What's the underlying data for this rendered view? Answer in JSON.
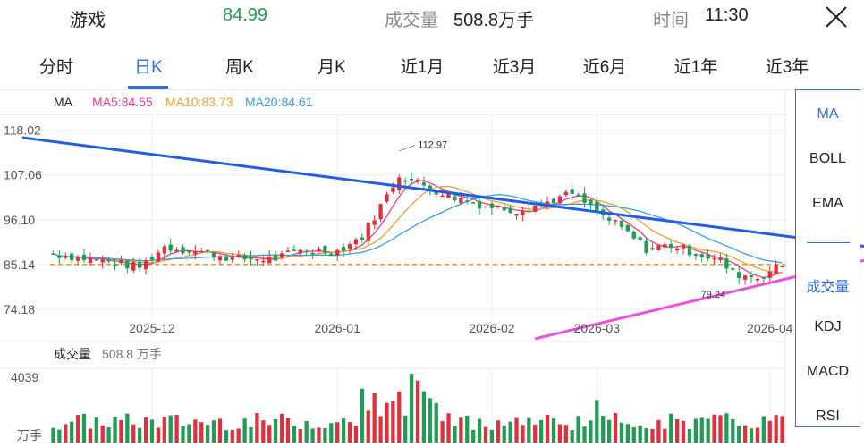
{
  "header": {
    "stock_name": "游戏",
    "price": "84.99",
    "volume_label": "成交量",
    "volume_value": "508.8万手",
    "time_label": "时间",
    "time_value": "11:30"
  },
  "tabs": [
    {
      "label": "分时"
    },
    {
      "label": "日K",
      "active": true
    },
    {
      "label": "周K"
    },
    {
      "label": "月K"
    },
    {
      "label": "近1月"
    },
    {
      "label": "近3月"
    },
    {
      "label": "近6月"
    },
    {
      "label": "近1年"
    },
    {
      "label": "近3年"
    }
  ],
  "indicators_panel": {
    "main": [
      "MA",
      "BOLL",
      "EMA"
    ],
    "sub": [
      "成交量",
      "KDJ",
      "MACD",
      "RSI"
    ],
    "selected_main": "MA",
    "selected_sub": "成交量"
  },
  "ma_legend": {
    "label": "MA",
    "ma5": "MA5:84.55",
    "ma10": "MA10:83.73",
    "ma20": "MA20:84.61"
  },
  "volume_legend": {
    "label": "成交量",
    "value": "508.8 万手",
    "max": "4039",
    "unit": "万手"
  },
  "colors": {
    "up": "#e0303c",
    "down": "#1f9d55",
    "ma5": "#e83e8c",
    "ma10": "#f0a030",
    "ma20": "#3aa0e0",
    "accent": "#2f6fe0",
    "trend_down": "#1f5fe0",
    "trend_up": "#f050e0",
    "ref_line": "#f08c1e"
  },
  "chart_data": {
    "type": "candlestick",
    "y_ticks": [
      "118.02",
      "107.06",
      "96.10",
      "85.14",
      "74.18"
    ],
    "y_tick_values": [
      118.02,
      107.06,
      96.1,
      85.14,
      74.18
    ],
    "ylim": [
      72,
      121
    ],
    "x_ticks": [
      "2025-12",
      "2026-01",
      "2026-02",
      "2026-03",
      "2026-04"
    ],
    "x_tick_index": [
      16,
      46,
      71,
      88,
      116
    ],
    "reference_price": 85.14,
    "annotations": [
      {
        "text": "112.97",
        "index": 56,
        "value": 112.97
      },
      {
        "text": "79.24",
        "index": 112,
        "value": 79.24
      }
    ],
    "trendlines": [
      {
        "name": "resistance",
        "from": [
          -5,
          116.2
        ],
        "to": [
          138,
          88.3
        ]
      },
      {
        "name": "support",
        "from": [
          78,
          67.0
        ],
        "to": [
          138,
          88.6
        ]
      }
    ],
    "volume_max": 4039
  }
}
